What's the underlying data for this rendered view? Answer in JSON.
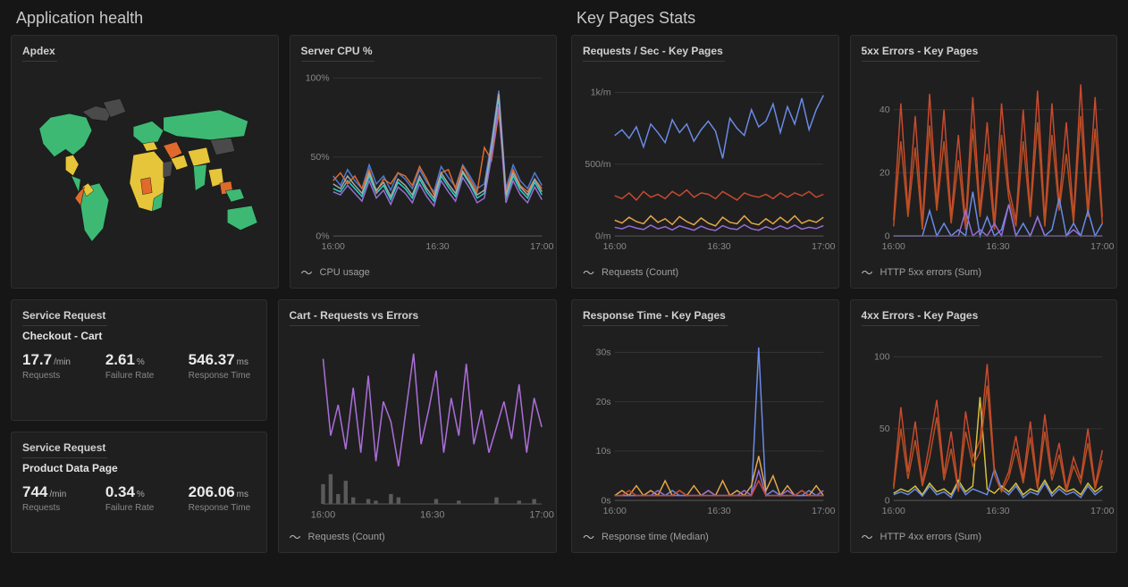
{
  "sections": {
    "left_title": "Application health",
    "right_title": "Key Pages Stats"
  },
  "cards": {
    "apdex": {
      "title": "Apdex",
      "map_colors": {
        "good": "#3db974",
        "warn": "#e6c53a",
        "bad": "#e06a2b",
        "na": "#4a4a4a",
        "dark": "#2a7a4f"
      }
    },
    "cpu": {
      "title": "Server CPU %",
      "footer": "CPU usage",
      "type": "line",
      "ylabel_suffix": "%",
      "ylim": [
        0,
        100
      ],
      "yticks": [
        0,
        50,
        100
      ],
      "xticks": [
        "16:00",
        "16:30",
        "17:00"
      ],
      "grid_color": "#333333",
      "series": [
        {
          "color": "#4a7ed6",
          "values": [
            38,
            32,
            42,
            35,
            30,
            45,
            33,
            38,
            29,
            40,
            36,
            30,
            42,
            34,
            28,
            44,
            37,
            31,
            45,
            38,
            30,
            33,
            60,
            92,
            30,
            45,
            35,
            30,
            40,
            32
          ]
        },
        {
          "color": "#2ad4c4",
          "values": [
            30,
            28,
            35,
            30,
            25,
            38,
            27,
            32,
            23,
            34,
            30,
            24,
            36,
            28,
            22,
            38,
            31,
            25,
            40,
            33,
            24,
            27,
            55,
            88,
            24,
            38,
            29,
            24,
            34,
            26
          ]
        },
        {
          "color": "#e06a2b",
          "values": [
            35,
            40,
            33,
            38,
            30,
            42,
            28,
            36,
            33,
            40,
            38,
            32,
            44,
            36,
            26,
            40,
            42,
            30,
            44,
            36,
            28,
            56,
            48,
            78,
            28,
            42,
            32,
            28,
            36,
            30
          ]
        },
        {
          "color": "#9a6dd7",
          "values": [
            28,
            26,
            32,
            27,
            22,
            35,
            24,
            29,
            20,
            31,
            27,
            21,
            33,
            25,
            19,
            35,
            28,
            22,
            37,
            30,
            21,
            24,
            50,
            82,
            21,
            35,
            26,
            21,
            31,
            23
          ]
        },
        {
          "color": "#a8a8a8",
          "values": [
            33,
            30,
            38,
            32,
            27,
            40,
            29,
            34,
            25,
            36,
            32,
            26,
            38,
            30,
            24,
            40,
            33,
            27,
            41,
            34,
            26,
            29,
            57,
            90,
            26,
            40,
            31,
            26,
            36,
            28
          ]
        }
      ]
    },
    "svc_checkout": {
      "title_small": "Service Request",
      "title_main": "Checkout - Cart",
      "metrics": [
        {
          "value": "17.7",
          "unit": "/min",
          "label": "Requests"
        },
        {
          "value": "2.61",
          "unit": "%",
          "label": "Failure Rate"
        },
        {
          "value": "546.37",
          "unit": "ms",
          "label": "Response Time"
        }
      ]
    },
    "svc_product": {
      "title_small": "Service Request",
      "title_main": "Product Data Page",
      "metrics": [
        {
          "value": "744",
          "unit": "/min",
          "label": "Requests"
        },
        {
          "value": "0.34",
          "unit": "%",
          "label": "Failure Rate"
        },
        {
          "value": "206.06",
          "unit": "ms",
          "label": "Response Time"
        }
      ]
    },
    "cart_req_err": {
      "title": "Cart - Requests vs Errors",
      "footer": "Requests (Count)",
      "type": "line",
      "xticks": [
        "16:00",
        "16:30",
        "17:00"
      ],
      "series": [
        {
          "color": "#a96dd7",
          "values": [
            85,
            40,
            58,
            32,
            68,
            30,
            75,
            25,
            60,
            48,
            22,
            55,
            88,
            35,
            55,
            78,
            30,
            62,
            40,
            82,
            35,
            55,
            30,
            45,
            60,
            38,
            70,
            30,
            62,
            45
          ]
        }
      ],
      "bars": {
        "color": "#5a5a5a",
        "values": [
          12,
          18,
          6,
          14,
          4,
          0,
          3,
          2,
          0,
          6,
          4,
          0,
          0,
          0,
          0,
          3,
          0,
          0,
          2,
          0,
          0,
          0,
          0,
          4,
          0,
          0,
          2,
          0,
          3,
          0
        ]
      }
    },
    "req_sec": {
      "title": "Requests / Sec - Key Pages",
      "footer": "Requests (Count)",
      "type": "line",
      "yticks_labels": [
        "0/m",
        "500/m",
        "1k/m"
      ],
      "yticks": [
        0,
        500,
        1000
      ],
      "ylim": [
        0,
        1100
      ],
      "xticks": [
        "16:00",
        "16:30",
        "17:00"
      ],
      "series": [
        {
          "color": "#6a8ce8",
          "values": [
            700,
            740,
            680,
            760,
            620,
            780,
            720,
            650,
            810,
            720,
            780,
            660,
            740,
            800,
            730,
            540,
            820,
            750,
            700,
            880,
            760,
            800,
            920,
            720,
            900,
            780,
            960,
            740,
            880,
            980
          ]
        },
        {
          "color": "#c94a30",
          "values": [
            280,
            260,
            300,
            250,
            310,
            270,
            290,
            260,
            310,
            280,
            320,
            270,
            300,
            290,
            260,
            310,
            280,
            250,
            300,
            280,
            270,
            290,
            260,
            300,
            270,
            300,
            280,
            310,
            270,
            290
          ]
        },
        {
          "color": "#e6a84a",
          "values": [
            110,
            90,
            130,
            100,
            85,
            140,
            95,
            120,
            80,
            135,
            100,
            78,
            125,
            90,
            70,
            130,
            95,
            85,
            140,
            90,
            78,
            120,
            85,
            130,
            92,
            140,
            88,
            110,
            95,
            130
          ]
        },
        {
          "color": "#9a6dd7",
          "values": [
            60,
            50,
            70,
            55,
            45,
            75,
            50,
            65,
            42,
            70,
            55,
            40,
            68,
            48,
            38,
            72,
            52,
            45,
            78,
            50,
            40,
            65,
            45,
            70,
            50,
            75,
            48,
            60,
            52,
            72
          ]
        }
      ]
    },
    "e5xx": {
      "title": "5xx Errors - Key Pages",
      "footer": "HTTP 5xx errors (Sum)",
      "type": "line",
      "ylim": [
        0,
        50
      ],
      "yticks": [
        0,
        20,
        40
      ],
      "xticks": [
        "16:00",
        "16:30",
        "17:00"
      ],
      "series": [
        {
          "color": "#c94a30",
          "values": [
            5,
            42,
            8,
            38,
            4,
            45,
            10,
            40,
            6,
            32,
            4,
            44,
            8,
            36,
            4,
            42,
            15,
            5,
            40,
            8,
            46,
            5,
            42,
            10,
            36,
            6,
            48,
            8,
            44,
            6
          ]
        },
        {
          "color": "#b85020",
          "values": [
            3,
            30,
            6,
            28,
            2,
            35,
            8,
            30,
            4,
            24,
            2,
            34,
            6,
            26,
            2,
            32,
            12,
            3,
            30,
            6,
            36,
            3,
            32,
            8,
            26,
            4,
            38,
            6,
            34,
            4
          ]
        },
        {
          "color": "#6a8ce8",
          "values": [
            0,
            0,
            0,
            0,
            0,
            8,
            0,
            4,
            0,
            2,
            0,
            14,
            0,
            6,
            0,
            2,
            10,
            0,
            4,
            0,
            6,
            0,
            2,
            12,
            0,
            4,
            0,
            8,
            0,
            4
          ]
        },
        {
          "color": "#9a6dd7",
          "values": [
            0,
            0,
            0,
            0,
            0,
            0,
            0,
            0,
            0,
            0,
            8,
            0,
            2,
            0,
            4,
            0,
            10,
            0,
            0,
            0,
            6,
            0,
            0,
            0,
            0,
            2,
            0,
            0,
            0,
            0
          ]
        }
      ]
    },
    "resp_time": {
      "title": "Response Time - Key Pages",
      "footer": "Response time (Median)",
      "type": "line",
      "ylim": [
        0,
        32
      ],
      "yticks": [
        0,
        10,
        20,
        30
      ],
      "ytick_suffix": "s",
      "xticks": [
        "16:00",
        "16:30",
        "17:00"
      ],
      "series": [
        {
          "color": "#6a8ce8",
          "values": [
            1,
            1,
            1,
            1,
            1,
            1,
            1,
            1,
            2,
            1,
            1,
            1,
            1,
            1,
            1,
            1,
            1,
            1,
            1,
            1,
            31,
            1,
            2,
            1,
            1,
            1,
            1,
            2,
            1,
            1
          ]
        },
        {
          "color": "#e6a84a",
          "values": [
            1,
            2,
            1,
            3,
            1,
            2,
            1,
            4,
            1,
            2,
            1,
            3,
            1,
            2,
            1,
            4,
            1,
            2,
            1,
            3,
            9,
            2,
            5,
            1,
            3,
            1,
            2,
            1,
            3,
            1
          ]
        },
        {
          "color": "#9a6dd7",
          "values": [
            1,
            1,
            1,
            1,
            1,
            1,
            2,
            1,
            1,
            1,
            1,
            1,
            1,
            2,
            1,
            1,
            1,
            1,
            2,
            1,
            6,
            1,
            1,
            1,
            2,
            1,
            1,
            1,
            1,
            2
          ]
        },
        {
          "color": "#c94a30",
          "values": [
            1,
            1,
            2,
            1,
            1,
            1,
            1,
            1,
            1,
            2,
            1,
            1,
            1,
            1,
            1,
            1,
            1,
            1,
            1,
            1,
            4,
            1,
            1,
            1,
            1,
            1,
            2,
            1,
            1,
            1
          ]
        }
      ]
    },
    "e4xx": {
      "title": "4xx Errors - Key Pages",
      "footer": "HTTP 4xx errors (Sum)",
      "type": "line",
      "ylim": [
        0,
        110
      ],
      "yticks": [
        0,
        50,
        100
      ],
      "xticks": [
        "16:00",
        "16:30",
        "17:00"
      ],
      "series": [
        {
          "color": "#c94a30",
          "values": [
            10,
            65,
            20,
            55,
            12,
            40,
            70,
            18,
            48,
            8,
            62,
            30,
            42,
            95,
            22,
            8,
            20,
            45,
            15,
            55,
            10,
            60,
            18,
            40,
            8,
            30,
            15,
            50,
            10,
            35
          ]
        },
        {
          "color": "#d8c23a",
          "values": [
            5,
            8,
            6,
            10,
            4,
            12,
            6,
            8,
            4,
            14,
            6,
            10,
            72,
            8,
            5,
            10,
            6,
            12,
            4,
            8,
            6,
            14,
            5,
            10,
            6,
            8,
            4,
            12,
            6,
            10
          ]
        },
        {
          "color": "#6a8ce8",
          "values": [
            4,
            6,
            4,
            8,
            3,
            10,
            4,
            6,
            2,
            12,
            4,
            8,
            6,
            4,
            22,
            8,
            4,
            10,
            2,
            6,
            4,
            12,
            3,
            8,
            4,
            6,
            2,
            10,
            4,
            8
          ]
        },
        {
          "color": "#b85020",
          "values": [
            8,
            50,
            15,
            42,
            10,
            30,
            58,
            14,
            36,
            6,
            48,
            24,
            34,
            80,
            18,
            6,
            16,
            36,
            12,
            44,
            8,
            48,
            14,
            32,
            6,
            24,
            12,
            40,
            8,
            28
          ]
        }
      ]
    }
  }
}
